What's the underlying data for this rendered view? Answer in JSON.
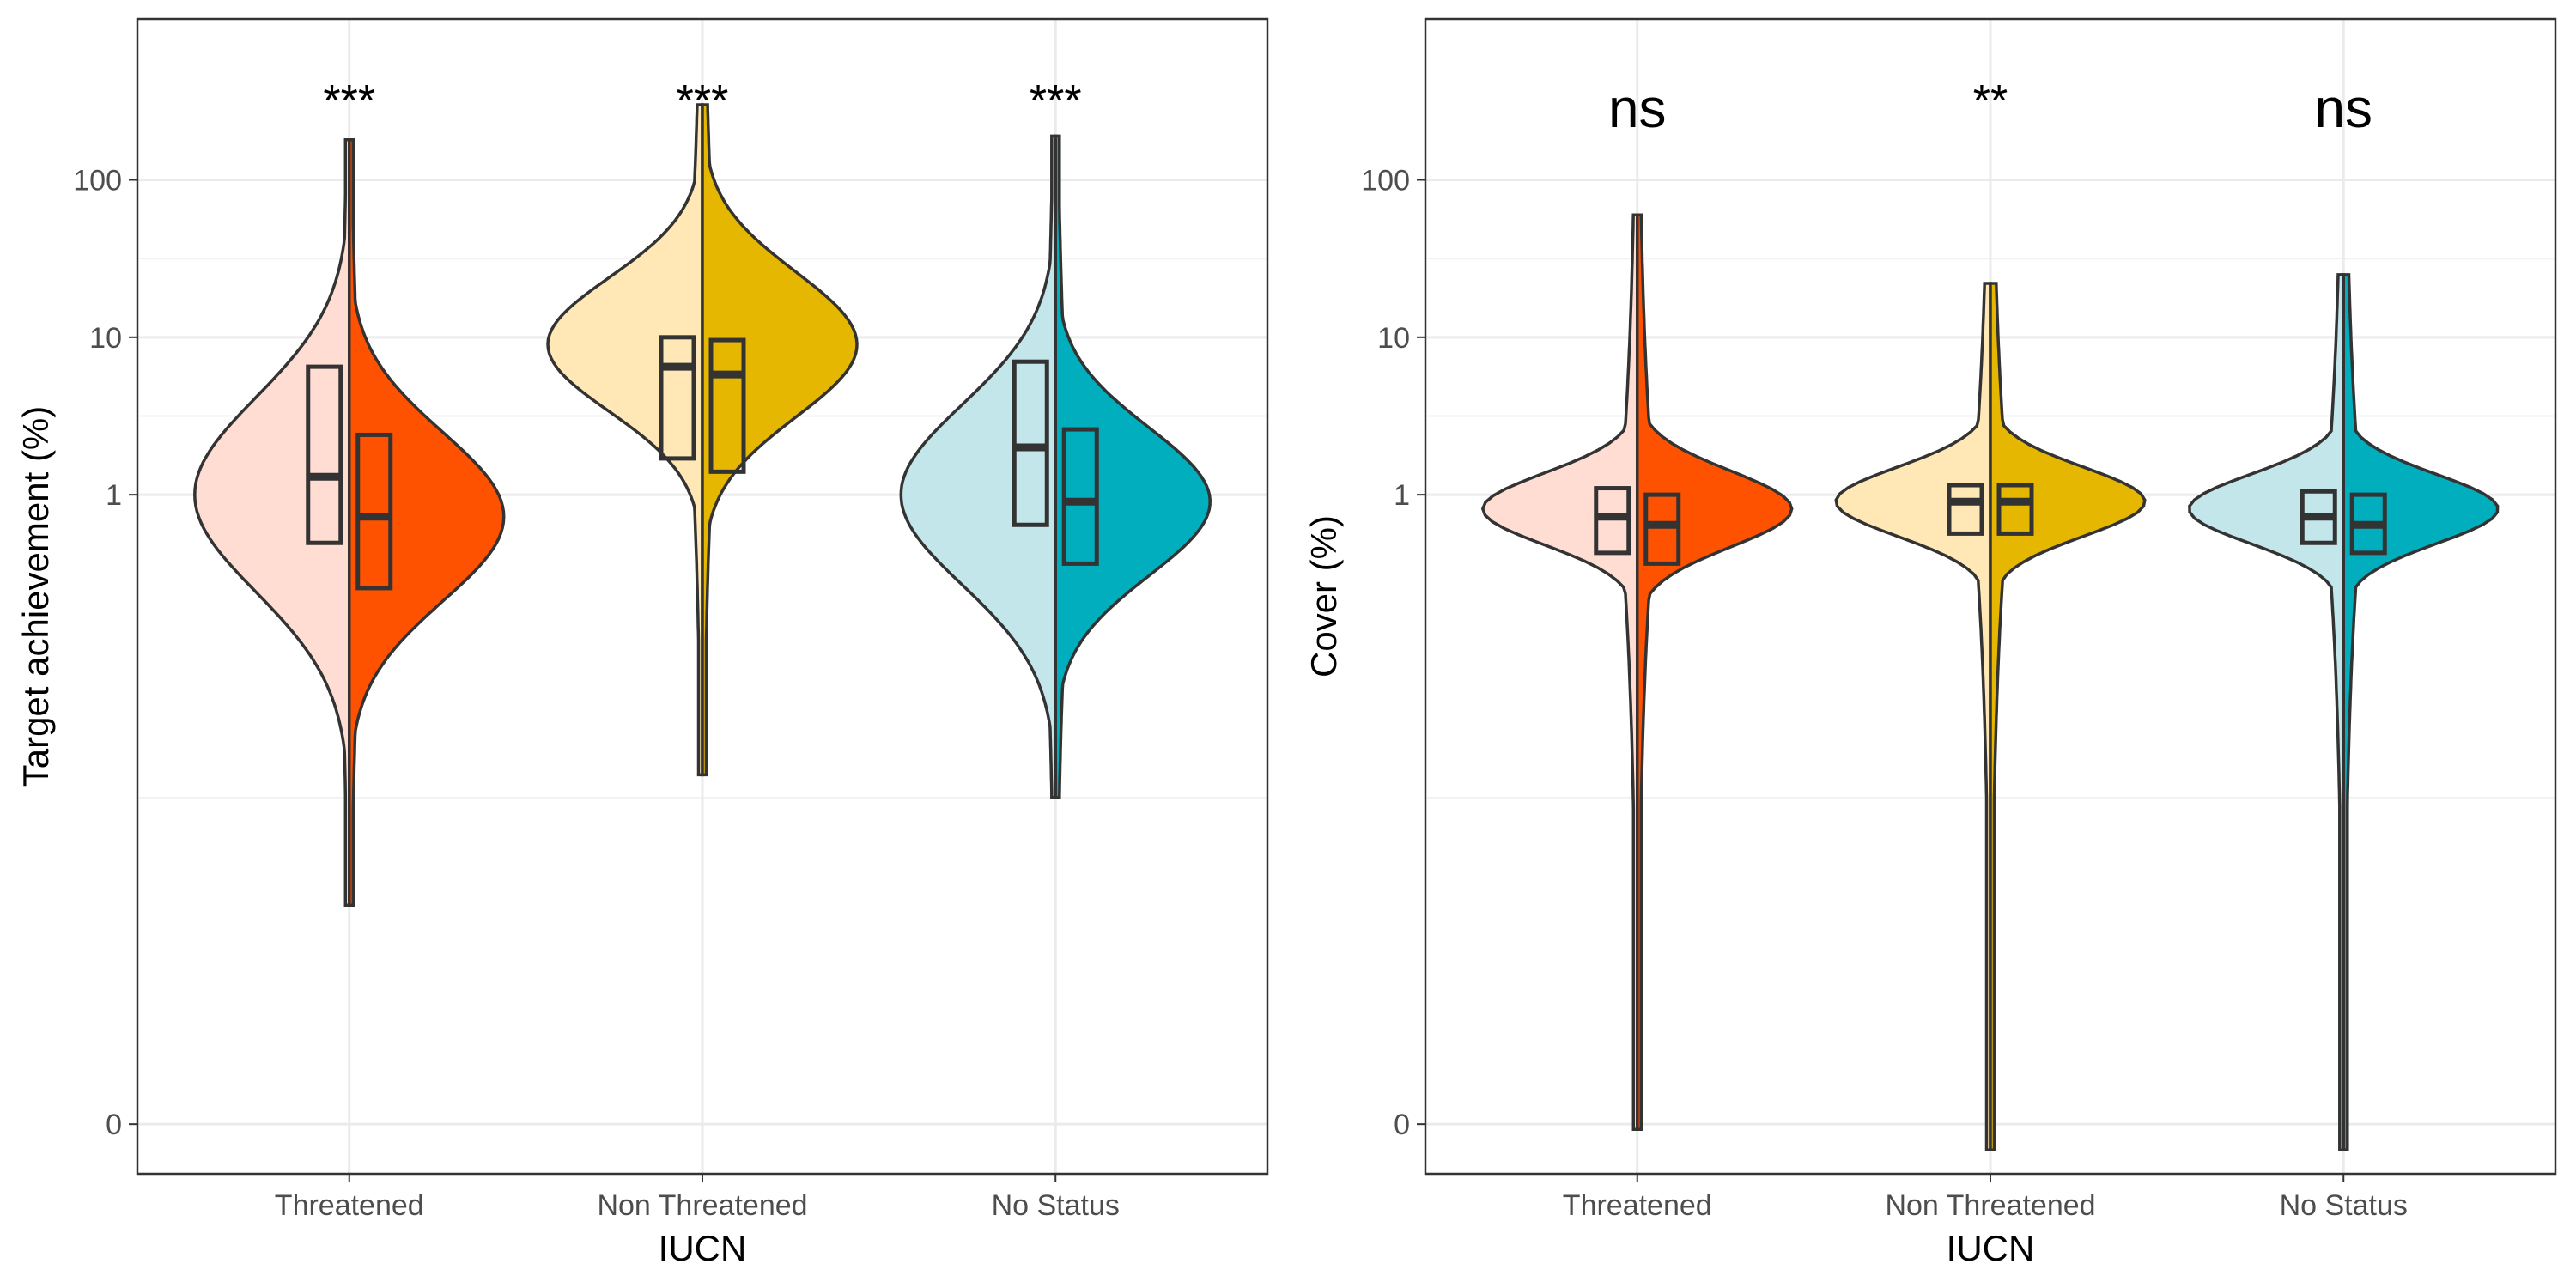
{
  "chart_data": [
    {
      "type": "violin",
      "ylabel": "Target achievement (%)",
      "xlabel": "IUCN",
      "y_scale": "log-like",
      "y_ticks": [
        "0",
        "1",
        "10",
        "100"
      ],
      "categories": [
        "Threatened",
        "Non Threatened",
        "No Status"
      ],
      "significance": [
        "***",
        "***",
        "***"
      ],
      "groups": [
        {
          "category": "Threatened",
          "fill_left": "#FFDDD2",
          "fill_right": "#FF5200",
          "left": {
            "q1": 0.7,
            "median": 1.3,
            "q3": 6.5,
            "max": 180,
            "min": 0.04,
            "mode": 1.0
          },
          "right": {
            "q1": 0.5,
            "median": 0.85,
            "q3": 2.4,
            "max": 180,
            "min": 0.04,
            "mode": 0.85
          }
        },
        {
          "category": "Non Threatened",
          "fill_left": "#FFE8B5",
          "fill_right": "#E5B700",
          "left": {
            "q1": 1.7,
            "median": 6.5,
            "q3": 10,
            "max": 300,
            "min": 0.12,
            "mode": 9
          },
          "right": {
            "q1": 1.4,
            "median": 5.8,
            "q3": 9.6,
            "max": 300,
            "min": 0.12,
            "mode": 9
          }
        },
        {
          "category": "No Status",
          "fill_left": "#C3E6EA",
          "fill_right": "#00AEBD",
          "left": {
            "q1": 0.8,
            "median": 2,
            "q3": 7,
            "max": 190,
            "min": 0.1,
            "mode": 1
          },
          "right": {
            "q1": 0.6,
            "median": 0.95,
            "q3": 2.6,
            "max": 190,
            "min": 0.1,
            "mode": 0.95
          }
        }
      ]
    },
    {
      "type": "violin",
      "ylabel": "Cover (%)",
      "xlabel": "IUCN",
      "y_scale": "log-like",
      "y_ticks": [
        "0",
        "1",
        "10",
        "100"
      ],
      "categories": [
        "Threatened",
        "Non Threatened",
        "No Status"
      ],
      "significance": [
        "ns",
        "**",
        "ns"
      ],
      "groups": [
        {
          "category": "Threatened",
          "fill_left": "#FFDDD2",
          "fill_right": "#FF5200",
          "left": {
            "q1": 0.65,
            "median": 0.85,
            "q3": 1.1,
            "max": 60,
            "min": -0.01,
            "mode": 0.9
          },
          "right": {
            "q1": 0.6,
            "median": 0.8,
            "q3": 1.0,
            "max": 60,
            "min": -0.01,
            "mode": 0.9
          }
        },
        {
          "category": "Non Threatened",
          "fill_left": "#FFE8B5",
          "fill_right": "#E5B700",
          "left": {
            "q1": 0.75,
            "median": 0.95,
            "q3": 1.15,
            "max": 22,
            "min": -0.05,
            "mode": 0.95
          },
          "right": {
            "q1": 0.75,
            "median": 0.95,
            "q3": 1.15,
            "max": 22,
            "min": -0.05,
            "mode": 0.95
          }
        },
        {
          "category": "No Status",
          "fill_left": "#C3E6EA",
          "fill_right": "#00AEBD",
          "left": {
            "q1": 0.7,
            "median": 0.85,
            "q3": 1.05,
            "max": 25,
            "min": -0.05,
            "mode": 0.9
          },
          "right": {
            "q1": 0.65,
            "median": 0.8,
            "q3": 1.0,
            "max": 25,
            "min": -0.05,
            "mode": 0.9
          }
        }
      ]
    }
  ]
}
